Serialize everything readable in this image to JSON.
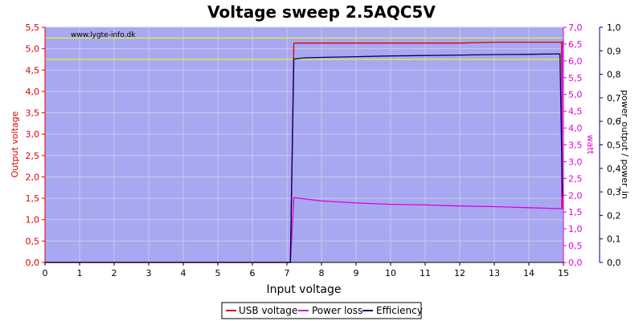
{
  "chart_data": {
    "type": "line",
    "title": "Voltage sweep 2.5AQC5V",
    "xlabel": "Input voltage",
    "ylabel_left": "Output voltage",
    "ylabel_right1": "watt",
    "ylabel_right2": "power_output / power_in",
    "watermark": "www.lygte-info.dk",
    "xlim": [
      0,
      15
    ],
    "ylim_left": [
      0,
      5.5
    ],
    "ylim_right1": [
      0,
      7
    ],
    "ylim_right2": [
      0,
      1
    ],
    "x_ticks": [
      "0",
      "1",
      "2",
      "3",
      "4",
      "5",
      "6",
      "7",
      "8",
      "9",
      "10",
      "11",
      "12",
      "13",
      "14",
      "15"
    ],
    "y_left_ticks": [
      "0,0",
      "0,5",
      "1,0",
      "1,5",
      "2,0",
      "2,5",
      "3,0",
      "3,5",
      "4,0",
      "4,5",
      "5,0",
      "5,5"
    ],
    "y_right1_ticks": [
      "0,0",
      "0,5",
      "1,0",
      "1,5",
      "2,0",
      "2,5",
      "3,0",
      "3,5",
      "4,0",
      "4,5",
      "5,0",
      "5,5",
      "6,0",
      "6,5",
      "7,0"
    ],
    "y_right2_ticks": [
      "0,0",
      "0,1",
      "0,2",
      "0,3",
      "0,4",
      "0,5",
      "0,6",
      "0,7",
      "0,8",
      "0,9",
      "1,0"
    ],
    "reference_lines_left": [
      5.25,
      4.75
    ],
    "grid": true,
    "legend_position": "bottom",
    "series": [
      {
        "name": "USB voltage",
        "axis": "left",
        "color": "#dd0000",
        "x": [
          0,
          6.9,
          7.1,
          7.2,
          8,
          10,
          12,
          13,
          14,
          14.95,
          14.97
        ],
        "y": [
          0,
          0,
          0,
          5.13,
          5.13,
          5.13,
          5.13,
          5.15,
          5.15,
          5.15,
          1.25
        ]
      },
      {
        "name": "Power loss",
        "axis": "right1",
        "color": "#dd00dd",
        "x": [
          0,
          6.9,
          7.1,
          7.2,
          8,
          9,
          10,
          11,
          12,
          13,
          14,
          14.9,
          14.95,
          14.97
        ],
        "y": [
          0,
          0,
          0,
          1.93,
          1.83,
          1.77,
          1.73,
          1.71,
          1.68,
          1.66,
          1.63,
          1.6,
          1.6,
          6.6
        ]
      },
      {
        "name": "Efficiency",
        "axis": "right2",
        "color": "#000066",
        "x": [
          0,
          6.9,
          7.1,
          7.2,
          7.5,
          8,
          9,
          10,
          11,
          12,
          13,
          14,
          14.9,
          14.97
        ],
        "y": [
          0,
          0,
          0,
          0.865,
          0.87,
          0.872,
          0.875,
          0.878,
          0.88,
          0.882,
          0.884,
          0.885,
          0.887,
          0.28
        ]
      }
    ],
    "colors": {
      "plot_bg": "#a8a8f0",
      "grid": "#c8c8f0",
      "reference": "#ffff00",
      "left_axis": "#dd0000",
      "right1_axis": "#dd00dd",
      "right2_axis": "#000066"
    }
  }
}
